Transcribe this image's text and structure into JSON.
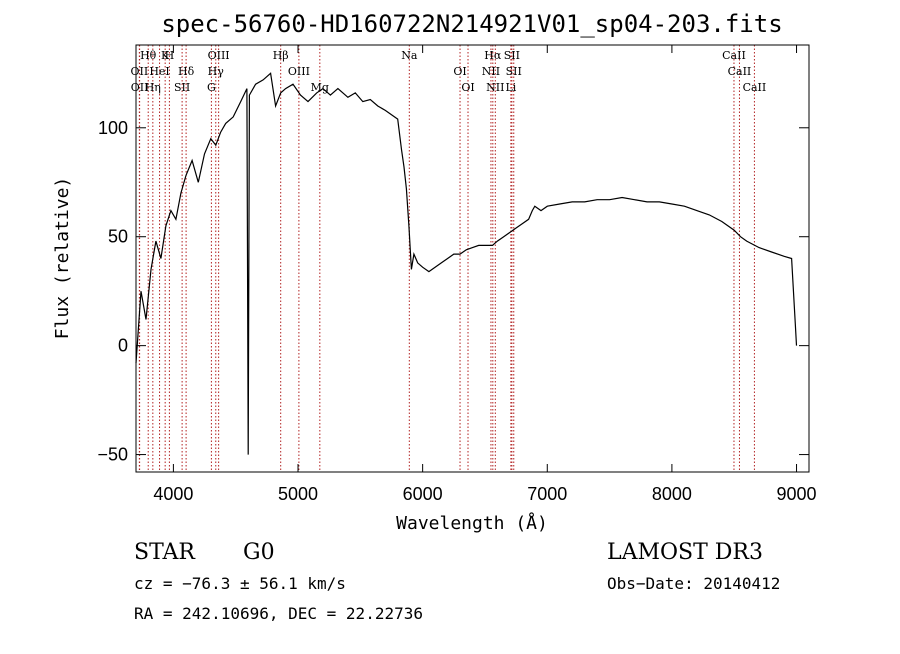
{
  "chart_data": {
    "type": "line",
    "title": "spec-56760-HD160722N214921V01_sp04-203.fits",
    "xlabel": "Wavelength (Å)",
    "ylabel": "Flux (relative)",
    "xlim": [
      3700,
      9100
    ],
    "ylim": [
      -58,
      138
    ],
    "xticks": [
      4000,
      5000,
      6000,
      7000,
      8000,
      9000
    ],
    "yticks": [
      -50,
      0,
      50,
      100
    ],
    "grid": false,
    "series": [
      {
        "x": [
          3700,
          3740,
          3780,
          3820,
          3860,
          3900,
          3940,
          3980,
          4020,
          4060,
          4100,
          4150,
          4200,
          4250,
          4300,
          4340,
          4380,
          4420,
          4480,
          4540,
          4590,
          4600,
          4610,
          4660,
          4720,
          4780,
          4820,
          4861,
          4900,
          4960,
          5020,
          5080,
          5150,
          5200,
          5260,
          5320,
          5400,
          5460,
          5520,
          5580,
          5640,
          5700,
          5750,
          5800,
          5830,
          5850,
          5870,
          5890,
          5910,
          5930,
          5960,
          6000,
          6050,
          6100,
          6150,
          6200,
          6250,
          6300,
          6350,
          6400,
          6450,
          6500,
          6560,
          6600,
          6650,
          6700,
          6750,
          6800,
          6850,
          6880,
          6900,
          6950,
          7000,
          7100,
          7200,
          7300,
          7400,
          7500,
          7600,
          7700,
          7800,
          7900,
          8000,
          8100,
          8200,
          8300,
          8400,
          8500,
          8550,
          8600,
          8700,
          8800,
          8900,
          8960,
          8990,
          9000
        ],
        "y": [
          -8,
          25,
          12,
          35,
          48,
          40,
          55,
          62,
          58,
          70,
          78,
          85,
          75,
          88,
          95,
          92,
          98,
          102,
          105,
          112,
          118,
          -50,
          115,
          120,
          122,
          125,
          110,
          116,
          118,
          120,
          115,
          112,
          116,
          118,
          115,
          118,
          114,
          116,
          112,
          113,
          110,
          108,
          106,
          104,
          90,
          82,
          72,
          55,
          35,
          42,
          38,
          36,
          34,
          36,
          38,
          40,
          42,
          42,
          44,
          45,
          46,
          46,
          46,
          48,
          50,
          52,
          54,
          56,
          58,
          62,
          64,
          62,
          64,
          65,
          66,
          66,
          67,
          67,
          68,
          67,
          66,
          66,
          65,
          64,
          62,
          60,
          57,
          53,
          50,
          48,
          45,
          43,
          41,
          40,
          10,
          0
        ]
      }
    ],
    "spectral_lines": [
      {
        "label": "Hθ",
        "x": 3798
      },
      {
        "label": "OII",
        "x": 3727
      },
      {
        "label": "OII",
        "x": 3729
      },
      {
        "label": "K",
        "x": 3934
      },
      {
        "label": "HeI",
        "x": 3889
      },
      {
        "label": "Hη",
        "x": 3835
      },
      {
        "label": "H",
        "x": 3968
      },
      {
        "label": "Hδ",
        "x": 4102
      },
      {
        "label": "SII",
        "x": 4070
      },
      {
        "label": "OIII",
        "x": 4363
      },
      {
        "label": "Hγ",
        "x": 4340
      },
      {
        "label": "G",
        "x": 4305
      },
      {
        "label": "Hβ",
        "x": 4861
      },
      {
        "label": "OIII",
        "x": 5007
      },
      {
        "label": "Mg",
        "x": 5175
      },
      {
        "label": "Na",
        "x": 5893
      },
      {
        "label": "OI",
        "x": 6300
      },
      {
        "label": "OI",
        "x": 6364
      },
      {
        "label": "Hα",
        "x": 6563
      },
      {
        "label": "NII",
        "x": 6548
      },
      {
        "label": "NII",
        "x": 6583
      },
      {
        "label": "SII",
        "x": 6716
      },
      {
        "label": "SII",
        "x": 6731
      },
      {
        "label": "Li",
        "x": 6708
      },
      {
        "label": "CaII",
        "x": 8498
      },
      {
        "label": "CaII",
        "x": 8542
      },
      {
        "label": "CaII",
        "x": 8662
      }
    ]
  },
  "info": {
    "class": "STAR",
    "subclass": "G0",
    "survey": "LAMOST DR3",
    "cz": "cz = −76.3 ± 56.1 km/s",
    "obs_date": "Obs−Date: 20140412",
    "radec": "RA = 242.10696, DEC =  22.22736"
  }
}
